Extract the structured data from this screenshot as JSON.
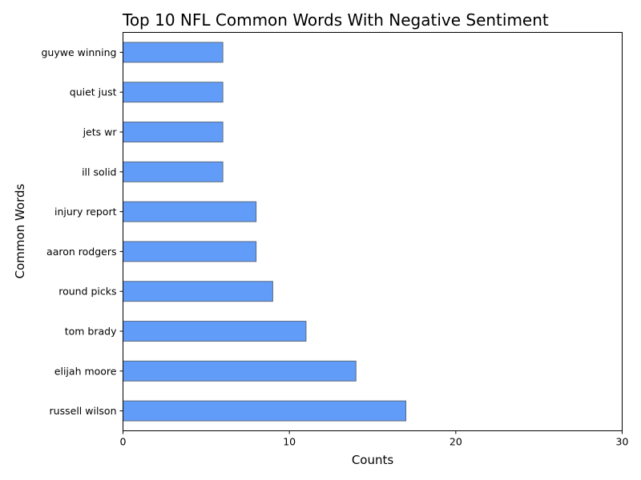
{
  "chart_data": {
    "type": "bar",
    "orientation": "horizontal",
    "title": "Top 10 NFL Common Words With Negative Sentiment",
    "xlabel": "Counts",
    "ylabel": "Common Words",
    "xlim": [
      0,
      30
    ],
    "xticks": [
      0,
      10,
      20,
      30
    ],
    "grid": false,
    "categories": [
      "russell wilson",
      "elijah moore",
      "tom brady",
      "round picks",
      "aaron rodgers",
      "injury report",
      "ill solid",
      "jets wr",
      "quiet just",
      "guywe winning"
    ],
    "values": [
      17,
      14,
      11,
      9,
      8,
      8,
      6,
      6,
      6,
      6
    ],
    "bar_color": "#619cf8",
    "bar_edge_color": "#5a6a7e"
  }
}
